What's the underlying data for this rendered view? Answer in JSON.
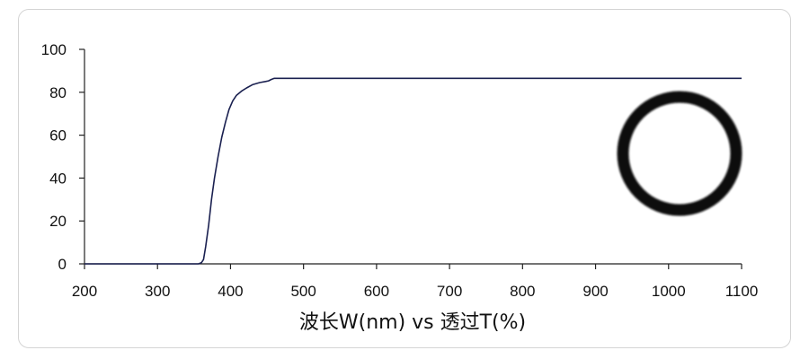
{
  "chart_data": {
    "type": "line",
    "title": "",
    "xlabel": "波长W(nm) vs 透过T(%)",
    "ylabel": "",
    "xlim": [
      200,
      1100
    ],
    "ylim": [
      0,
      100
    ],
    "x_ticks": [
      200,
      300,
      400,
      500,
      600,
      700,
      800,
      900,
      1000,
      1100
    ],
    "y_ticks": [
      0,
      20,
      40,
      60,
      80,
      100
    ],
    "grid": false,
    "legend": "none",
    "series": [
      {
        "color": "#1a2050",
        "points": [
          [
            200,
            0
          ],
          [
            356,
            0
          ],
          [
            360,
            0.5
          ],
          [
            363,
            2
          ],
          [
            366,
            8
          ],
          [
            370,
            18
          ],
          [
            374,
            30
          ],
          [
            378,
            40
          ],
          [
            383,
            50
          ],
          [
            388,
            59
          ],
          [
            393,
            66
          ],
          [
            398,
            72
          ],
          [
            403,
            76
          ],
          [
            408,
            78.5
          ],
          [
            415,
            80.5
          ],
          [
            422,
            82
          ],
          [
            430,
            83.5
          ],
          [
            440,
            84.5
          ],
          [
            448,
            85
          ],
          [
            452,
            85.3
          ],
          [
            456,
            86
          ],
          [
            460,
            86.5
          ],
          [
            470,
            86.5
          ],
          [
            1100,
            86.5
          ]
        ]
      }
    ]
  },
  "inset": {
    "icon": "ring-aperture-image"
  }
}
